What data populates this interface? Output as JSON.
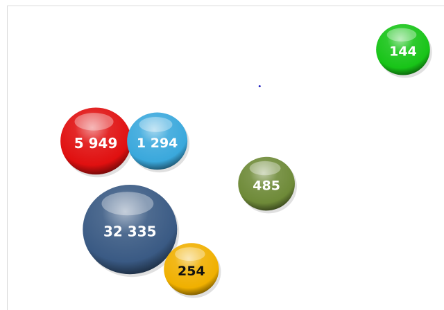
{
  "chart_data": {
    "type": "scatter",
    "subtype": "bubble",
    "title": "",
    "xlabel": "",
    "ylabel": "",
    "grid": false,
    "legend": "none",
    "points": [
      {
        "label": "5 949",
        "x": 1.2,
        "y": 5.2,
        "size": 5949,
        "color": "#e01010",
        "text_color": "#ffffff"
      },
      {
        "label": "1 294",
        "x": 2.1,
        "y": 5.2,
        "size": 1294,
        "color": "#3aa8dc",
        "text_color": "#ffffff"
      },
      {
        "label": "32 335",
        "x": 1.7,
        "y": 2.3,
        "size": 32335,
        "color": "#3a5a84",
        "text_color": "#ffffff"
      },
      {
        "label": "254",
        "x": 2.6,
        "y": 1.0,
        "size": 254,
        "color": "#f0b000",
        "text_color": "#111111"
      },
      {
        "label": "485",
        "x": 3.7,
        "y": 3.8,
        "size": 485,
        "color": "#6e8a38",
        "text_color": "#ffffff"
      },
      {
        "label": "144",
        "x": 5.7,
        "y": 8.2,
        "size": 144,
        "color": "#18c418",
        "text_color": "#ffffff"
      }
    ],
    "marker": {
      "x": 3.6,
      "y": 7.0,
      "color": "#2020c0"
    }
  }
}
